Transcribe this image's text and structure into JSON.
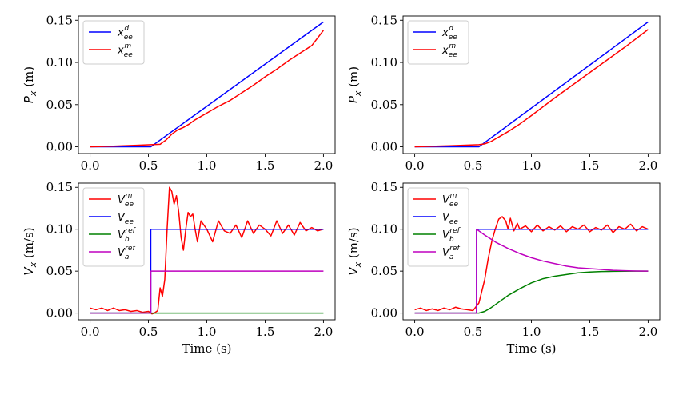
{
  "chart_data": [
    {
      "id": "top-left",
      "type": "line",
      "ylabel": "P_x (m)",
      "xlabel": "",
      "xlim": [
        -0.1,
        2.1
      ],
      "ylim": [
        -0.008,
        0.155
      ],
      "xticks": [
        0.0,
        0.5,
        1.0,
        1.5,
        2.0
      ],
      "xtick_labels": [
        "0.0",
        "0.5",
        "1.0",
        "1.5",
        "2.0"
      ],
      "yticks": [
        0.0,
        0.05,
        0.1,
        0.15
      ],
      "ytick_labels": [
        "0.00",
        "0.05",
        "0.10",
        "0.15"
      ],
      "legend_position": "upper-left",
      "series": [
        {
          "name": "x_ee^d",
          "base": "x",
          "sub": "ee",
          "sup": "d",
          "color": "#0000ff",
          "x": [
            0,
            0.52,
            2.0
          ],
          "y": [
            0,
            0,
            0.148
          ]
        },
        {
          "name": "x_ee^m",
          "base": "x",
          "sub": "ee",
          "sup": "m",
          "color": "#ff0000",
          "x": [
            0,
            0.2,
            0.4,
            0.6,
            0.65,
            0.7,
            0.75,
            0.8,
            0.85,
            0.9,
            1.0,
            1.1,
            1.2,
            1.3,
            1.4,
            1.5,
            1.6,
            1.7,
            1.8,
            1.9,
            2.0
          ],
          "y": [
            0,
            0.0008,
            0.0018,
            0.003,
            0.008,
            0.015,
            0.02,
            0.023,
            0.027,
            0.032,
            0.04,
            0.048,
            0.055,
            0.064,
            0.073,
            0.083,
            0.092,
            0.102,
            0.111,
            0.12,
            0.138
          ]
        }
      ]
    },
    {
      "id": "top-right",
      "type": "line",
      "ylabel": "P_x (m)",
      "xlabel": "",
      "xlim": [
        -0.1,
        2.1
      ],
      "ylim": [
        -0.008,
        0.155
      ],
      "xticks": [
        0.0,
        0.5,
        1.0,
        1.5,
        2.0
      ],
      "xtick_labels": [
        "0.0",
        "0.5",
        "1.0",
        "1.5",
        "2.0"
      ],
      "yticks": [
        0.0,
        0.05,
        0.1,
        0.15
      ],
      "ytick_labels": [
        "0.00",
        "0.05",
        "0.10",
        "0.15"
      ],
      "legend_position": "upper-left",
      "series": [
        {
          "name": "x_ee^d",
          "base": "x",
          "sub": "ee",
          "sup": "d",
          "color": "#0000ff",
          "x": [
            0,
            0.55,
            2.0
          ],
          "y": [
            0,
            0,
            0.148
          ]
        },
        {
          "name": "x_ee^m",
          "base": "x",
          "sub": "ee",
          "sup": "m",
          "color": "#ff0000",
          "x": [
            0,
            0.3,
            0.55,
            0.6,
            0.65,
            0.7,
            0.75,
            0.8,
            0.9,
            1.0,
            1.2,
            1.4,
            1.6,
            1.8,
            2.0
          ],
          "y": [
            0,
            0.0012,
            0.0025,
            0.0035,
            0.006,
            0.01,
            0.014,
            0.018,
            0.027,
            0.037,
            0.058,
            0.078,
            0.098,
            0.118,
            0.139
          ]
        }
      ]
    },
    {
      "id": "bottom-left",
      "type": "line",
      "ylabel": "V_x (m/s)",
      "xlabel": "Time (s)",
      "xlim": [
        -0.1,
        2.1
      ],
      "ylim": [
        -0.008,
        0.155
      ],
      "xticks": [
        0.0,
        0.5,
        1.0,
        1.5,
        2.0
      ],
      "xtick_labels": [
        "0.0",
        "0.5",
        "1.0",
        "1.5",
        "2.0"
      ],
      "yticks": [
        0.0,
        0.05,
        0.1,
        0.15
      ],
      "ytick_labels": [
        "0.00",
        "0.05",
        "0.10",
        "0.15"
      ],
      "legend_position": "upper-left",
      "series": [
        {
          "name": "V_ee^m",
          "base": "V",
          "sub": "ee",
          "sup": "m",
          "color": "#ff0000",
          "x": [
            0,
            0.05,
            0.1,
            0.15,
            0.2,
            0.25,
            0.3,
            0.35,
            0.4,
            0.45,
            0.5,
            0.53,
            0.55,
            0.58,
            0.6,
            0.62,
            0.64,
            0.66,
            0.68,
            0.7,
            0.72,
            0.74,
            0.76,
            0.78,
            0.8,
            0.82,
            0.84,
            0.86,
            0.88,
            0.9,
            0.92,
            0.95,
            1.0,
            1.05,
            1.1,
            1.15,
            1.2,
            1.25,
            1.3,
            1.35,
            1.4,
            1.45,
            1.5,
            1.55,
            1.6,
            1.65,
            1.7,
            1.75,
            1.8,
            1.85,
            1.9,
            1.95,
            2.0
          ],
          "y": [
            0.006,
            0.004,
            0.006,
            0.003,
            0.006,
            0.003,
            0.004,
            0.002,
            0.003,
            0.001,
            0.002,
            -0.001,
            0.0,
            0.003,
            0.03,
            0.02,
            0.04,
            0.1,
            0.15,
            0.145,
            0.13,
            0.14,
            0.12,
            0.09,
            0.075,
            0.1,
            0.12,
            0.115,
            0.118,
            0.1,
            0.085,
            0.11,
            0.1,
            0.085,
            0.11,
            0.098,
            0.095,
            0.105,
            0.09,
            0.11,
            0.095,
            0.105,
            0.1,
            0.092,
            0.11,
            0.095,
            0.105,
            0.093,
            0.108,
            0.098,
            0.102,
            0.098,
            0.1
          ]
        },
        {
          "name": "V_ee",
          "base": "V",
          "sub": "ee",
          "sup": "",
          "color": "#0000ff",
          "x": [
            0,
            0.52,
            0.52,
            2.0
          ],
          "y": [
            0,
            0,
            0.1,
            0.1
          ]
        },
        {
          "name": "V_b^ref",
          "base": "V",
          "sub": "b",
          "sup": "ref",
          "color": "#008000",
          "x": [
            0,
            2.0
          ],
          "y": [
            0,
            0
          ]
        },
        {
          "name": "V_a^ref",
          "base": "V",
          "sub": "a",
          "sup": "ref",
          "color": "#bf00bf",
          "x": [
            0,
            0.52,
            0.52,
            2.0
          ],
          "y": [
            0,
            0,
            0.05,
            0.05
          ]
        }
      ]
    },
    {
      "id": "bottom-right",
      "type": "line",
      "ylabel": "V_x (m/s)",
      "xlabel": "Time (s)",
      "xlim": [
        -0.1,
        2.1
      ],
      "ylim": [
        -0.008,
        0.155
      ],
      "xticks": [
        0.0,
        0.5,
        1.0,
        1.5,
        2.0
      ],
      "xtick_labels": [
        "0.0",
        "0.5",
        "1.0",
        "1.5",
        "2.0"
      ],
      "yticks": [
        0.0,
        0.05,
        0.1,
        0.15
      ],
      "ytick_labels": [
        "0.00",
        "0.05",
        "0.10",
        "0.15"
      ],
      "legend_position": "upper-left",
      "series": [
        {
          "name": "V_ee^m",
          "base": "V",
          "sub": "ee",
          "sup": "m",
          "color": "#ff0000",
          "x": [
            0,
            0.05,
            0.1,
            0.15,
            0.2,
            0.25,
            0.3,
            0.35,
            0.4,
            0.45,
            0.5,
            0.55,
            0.6,
            0.63,
            0.66,
            0.69,
            0.72,
            0.75,
            0.78,
            0.8,
            0.82,
            0.85,
            0.88,
            0.9,
            0.95,
            1.0,
            1.05,
            1.1,
            1.15,
            1.2,
            1.25,
            1.3,
            1.35,
            1.4,
            1.45,
            1.5,
            1.55,
            1.6,
            1.65,
            1.7,
            1.75,
            1.8,
            1.85,
            1.9,
            1.95,
            2.0
          ],
          "y": [
            0.004,
            0.006,
            0.003,
            0.005,
            0.003,
            0.006,
            0.004,
            0.007,
            0.005,
            0.004,
            0.003,
            0.012,
            0.04,
            0.065,
            0.085,
            0.1,
            0.112,
            0.115,
            0.11,
            0.1,
            0.113,
            0.098,
            0.107,
            0.1,
            0.104,
            0.097,
            0.105,
            0.098,
            0.103,
            0.099,
            0.104,
            0.097,
            0.103,
            0.1,
            0.105,
            0.097,
            0.102,
            0.099,
            0.105,
            0.096,
            0.103,
            0.1,
            0.106,
            0.098,
            0.103,
            0.1
          ]
        },
        {
          "name": "V_ee",
          "base": "V",
          "sub": "ee",
          "sup": "",
          "color": "#0000ff",
          "x": [
            0,
            0.53,
            0.53,
            2.0
          ],
          "y": [
            0,
            0,
            0.1,
            0.1
          ]
        },
        {
          "name": "V_b^ref",
          "base": "V",
          "sub": "b",
          "sup": "ref",
          "color": "#008000",
          "x": [
            0,
            0.55,
            0.6,
            0.65,
            0.7,
            0.75,
            0.8,
            0.9,
            1.0,
            1.1,
            1.2,
            1.3,
            1.4,
            1.5,
            1.6,
            1.7,
            1.8,
            1.9,
            2.0
          ],
          "y": [
            0,
            0,
            0.002,
            0.006,
            0.011,
            0.016,
            0.021,
            0.029,
            0.036,
            0.041,
            0.044,
            0.046,
            0.048,
            0.049,
            0.0495,
            0.0498,
            0.0499,
            0.05,
            0.05
          ]
        },
        {
          "name": "V_a^ref",
          "base": "V",
          "sub": "a",
          "sup": "ref",
          "color": "#bf00bf",
          "x": [
            0,
            0.53,
            0.53,
            0.6,
            0.7,
            0.8,
            0.9,
            1.0,
            1.1,
            1.2,
            1.3,
            1.4,
            1.5,
            1.6,
            1.7,
            1.8,
            1.9,
            2.0
          ],
          "y": [
            0,
            0,
            0.1,
            0.093,
            0.084,
            0.077,
            0.071,
            0.066,
            0.062,
            0.059,
            0.056,
            0.054,
            0.053,
            0.052,
            0.051,
            0.0505,
            0.0502,
            0.05
          ]
        }
      ]
    }
  ]
}
